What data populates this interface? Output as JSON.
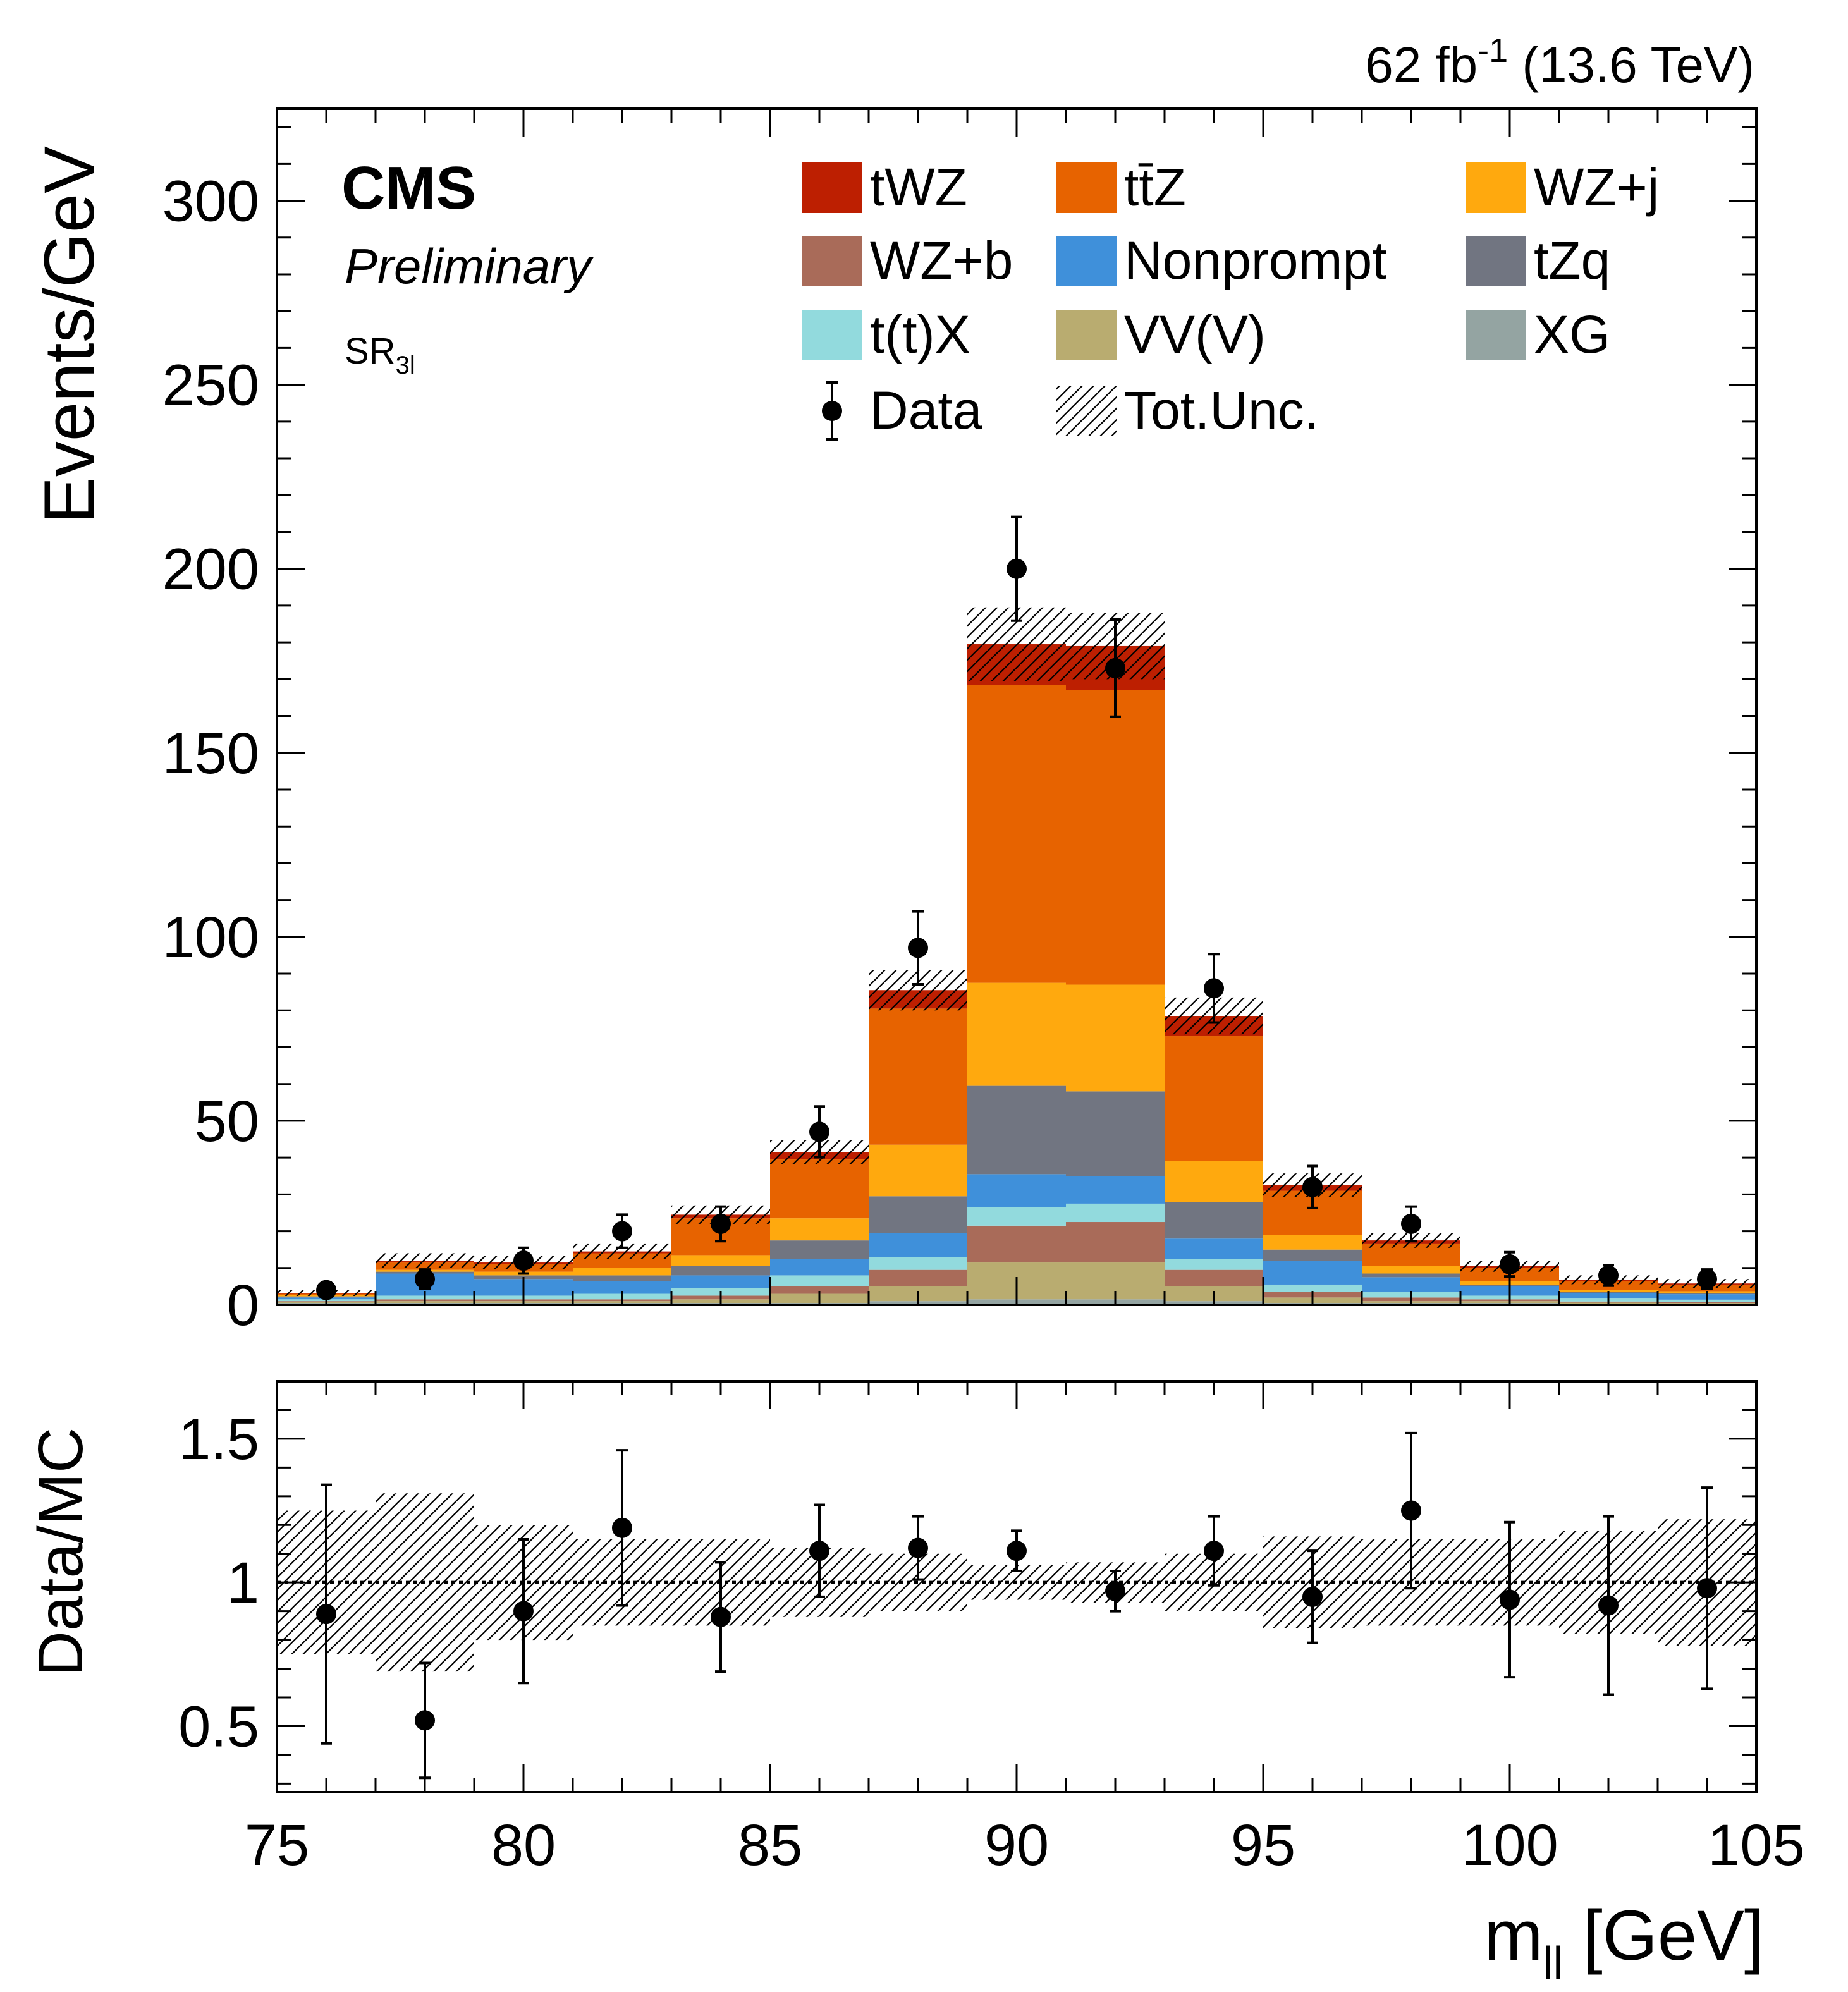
{
  "header": {
    "lumi": "62 fb",
    "lumi_exp": "-1",
    "energy": " (13.6 TeV)",
    "cms": "CMS",
    "preliminary": "Preliminary",
    "region": "SR",
    "region_sub": "3l"
  },
  "chart_data": [
    {
      "type": "bar",
      "stacked": true,
      "xlabel": "m",
      "xlabel_sub": "ll",
      "xlabel_unit": " [GeV]",
      "ylabel": "Events/GeV",
      "xlim": [
        75,
        105
      ],
      "ylim": [
        0,
        325
      ],
      "x_ticks": [
        "75",
        "80",
        "85",
        "90",
        "95",
        "100",
        "105"
      ],
      "y_ticks": [
        "0",
        "50",
        "100",
        "150",
        "200",
        "250",
        "300"
      ],
      "bin_edges": [
        75,
        77,
        79,
        81,
        83,
        85,
        87,
        89,
        91,
        93,
        95,
        97,
        99,
        101,
        103,
        105
      ],
      "legend_position": "top",
      "series": [
        {
          "name": "XG",
          "color": "#94a4a2",
          "values": [
            0.5,
            0.5,
            0.5,
            0.5,
            0.5,
            0.5,
            1.0,
            1.5,
            1.5,
            1.0,
            0.5,
            0.5,
            0.5,
            0.3,
            0.3
          ]
        },
        {
          "name": "VV(V)",
          "color": "#b9ac70",
          "values": [
            0.3,
            0.5,
            0.5,
            0.5,
            1.0,
            2.5,
            4.0,
            10.0,
            10.0,
            4.0,
            1.5,
            0.5,
            0.5,
            0.3,
            0.2
          ]
        },
        {
          "name": "WZ+b",
          "color": "#a96b59",
          "values": [
            0.2,
            0.5,
            0.5,
            0.5,
            1.0,
            2.0,
            4.5,
            10.0,
            11.0,
            4.5,
            1.5,
            1.0,
            0.5,
            0.3,
            0.2
          ]
        },
        {
          "name": "t(t)X",
          "color": "#92dadd",
          "values": [
            0.5,
            1.0,
            1.0,
            1.5,
            2.0,
            3.0,
            3.5,
            5.0,
            5.0,
            3.0,
            2.0,
            1.5,
            1.0,
            0.8,
            0.7
          ]
        },
        {
          "name": "Nonprompt",
          "color": "#3f90da",
          "values": [
            0.5,
            6.0,
            4.5,
            3.5,
            3.5,
            4.5,
            6.5,
            9.0,
            7.5,
            5.5,
            6.5,
            4.0,
            2.5,
            1.5,
            1.5
          ]
        },
        {
          "name": "tZq",
          "color": "#717581",
          "values": [
            0.3,
            0.5,
            1.0,
            1.5,
            2.5,
            5.0,
            10.0,
            24.0,
            23.0,
            10.0,
            3.0,
            1.0,
            0.5,
            0.3,
            0.3
          ]
        },
        {
          "name": "WZ+j",
          "color": "#ffa90e",
          "values": [
            0.3,
            0.5,
            1.0,
            2.0,
            3.0,
            6.0,
            14.0,
            28.0,
            29.0,
            11.0,
            4.0,
            2.0,
            1.0,
            0.5,
            0.5
          ]
        },
        {
          "name": "tt̄Z",
          "color": "#e76300",
          "values": [
            0.4,
            2.0,
            2.0,
            4.0,
            10.0,
            16.0,
            37.0,
            81.0,
            80.0,
            34.0,
            12.0,
            6.0,
            3.5,
            2.5,
            1.8
          ]
        },
        {
          "name": "tWZ",
          "color": "#bd1f01",
          "values": [
            0.2,
            0.5,
            0.5,
            0.5,
            1.0,
            2.0,
            5.0,
            11.0,
            12.0,
            5.5,
            1.5,
            1.0,
            0.5,
            0.3,
            0.3
          ]
        }
      ],
      "total_uncertainty_label": "Tot.Unc.",
      "total_uncertainty": [
        0.8,
        2.0,
        1.8,
        2.0,
        2.5,
        3.2,
        5.5,
        10.0,
        9.0,
        5.0,
        3.2,
        2.0,
        1.5,
        1.2,
        1.2
      ],
      "data": {
        "name": "Data",
        "x": [
          76,
          78,
          80,
          82,
          84,
          86,
          88,
          90,
          92,
          94,
          96,
          98,
          100,
          102,
          104
        ],
        "y": [
          4,
          7,
          12,
          20,
          22,
          47,
          97,
          200,
          173,
          86,
          32,
          22,
          11,
          8,
          7
        ],
        "err": [
          2,
          2.6,
          3.5,
          4.5,
          4.7,
          6.9,
          9.9,
          14.1,
          13.2,
          9.3,
          5.7,
          4.7,
          3.3,
          2.8,
          2.6
        ]
      }
    },
    {
      "type": "scatter",
      "ylabel": "Data/MC",
      "xlim": [
        75,
        105
      ],
      "ylim": [
        0.27,
        1.7
      ],
      "y_ticks": [
        "0.5",
        "1",
        "1.5"
      ],
      "reference_line": 1,
      "ratio": {
        "x": [
          76,
          78,
          80,
          82,
          84,
          86,
          88,
          90,
          92,
          94,
          96,
          98,
          100,
          102,
          104
        ],
        "y": [
          0.89,
          0.52,
          0.9,
          1.19,
          0.88,
          1.11,
          1.12,
          1.11,
          0.97,
          1.11,
          0.95,
          1.25,
          0.94,
          0.92,
          0.98
        ],
        "err": [
          0.45,
          0.2,
          0.25,
          0.27,
          0.19,
          0.16,
          0.11,
          0.07,
          0.07,
          0.12,
          0.16,
          0.27,
          0.27,
          0.31,
          0.35
        ]
      },
      "uncertainty_band": [
        0.25,
        0.31,
        0.2,
        0.15,
        0.15,
        0.12,
        0.1,
        0.06,
        0.07,
        0.1,
        0.16,
        0.15,
        0.15,
        0.18,
        0.22
      ]
    }
  ]
}
